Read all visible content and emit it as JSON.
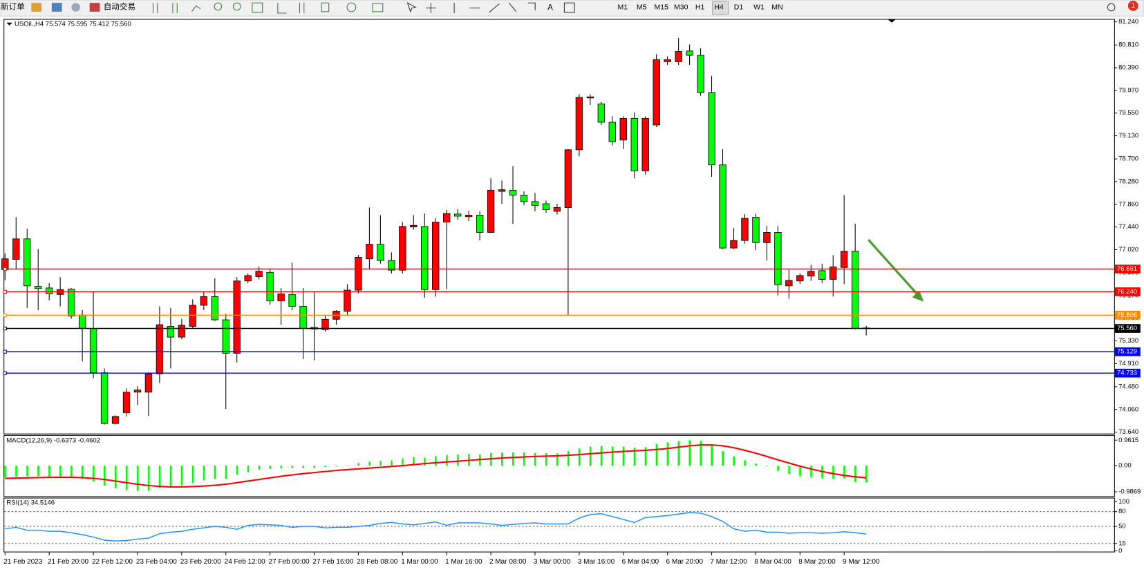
{
  "toolbar": {
    "new_order": "新订单",
    "auto_trading": "自动交易",
    "timeframes": [
      "M1",
      "M5",
      "M15",
      "M30",
      "H1",
      "H4",
      "D1",
      "W1",
      "MN"
    ],
    "notifications": "1"
  },
  "chart_data": [
    {
      "type": "candlestick",
      "title": "USOil.,H4 75.574 75.595 75.412 75.560",
      "categories": [
        "21 Feb 2023",
        null,
        null,
        null,
        "21 Feb 20:00",
        null,
        null,
        null,
        "22 Feb 12:00",
        null,
        null,
        null,
        "23 Feb 04:00",
        null,
        null,
        null,
        "23 Feb 20:00",
        null,
        null,
        null,
        "24 Feb 12:00",
        null,
        null,
        null,
        "27 Feb 00:00",
        null,
        null,
        null,
        "27 Feb 16:00",
        null,
        null,
        null,
        "28 Feb 08:00",
        null,
        null,
        null,
        "1 Mar 00:00",
        null,
        null,
        null,
        "1 Mar 16:00",
        null,
        null,
        null,
        "2 Mar 08:00",
        null,
        null,
        null,
        "3 Mar 00:00",
        null,
        null,
        null,
        "3 Mar 16:00",
        null,
        null,
        null,
        "6 Mar 04:00",
        null,
        null,
        null,
        "6 Mar 20:00",
        null,
        null,
        null,
        "7 Mar 12:00",
        null,
        null,
        null,
        "8 Mar 04:00",
        null,
        null,
        null,
        "8 Mar 20:00",
        null,
        null,
        null,
        "9 Mar 12:00",
        null,
        null
      ],
      "open": [
        76.65,
        76.84,
        77.22,
        76.34,
        76.31,
        76.19,
        76.29,
        75.81,
        75.56,
        74.74,
        73.8,
        74.0,
        74.38,
        74.38,
        74.72,
        75.6,
        75.4,
        75.6,
        75.99,
        76.15,
        75.72,
        75.1,
        76.44,
        76.52,
        76.6,
        76.07,
        76.19,
        75.97,
        75.58,
        75.54,
        75.73,
        75.88,
        76.27,
        76.85,
        77.12,
        76.82,
        76.64,
        77.44,
        77.45,
        76.28,
        77.53,
        77.68,
        77.63,
        77.66,
        77.34,
        78.1,
        78.12,
        78.03,
        77.91,
        77.87,
        77.73,
        77.8,
        78.87,
        79.83,
        79.72,
        79.38,
        79.05,
        79.45,
        78.48,
        79.33,
        80.5,
        80.5,
        80.7,
        80.62,
        79.93,
        78.59,
        77.05,
        77.19,
        77.62,
        77.15,
        77.34,
        76.35,
        76.44,
        76.53,
        76.63,
        76.47,
        76.69,
        76.99,
        75.57
      ],
      "high": [
        76.95,
        77.62,
        77.41,
        77.03,
        76.4,
        76.51,
        76.31,
        75.9,
        76.24,
        74.82,
        73.95,
        74.45,
        74.49,
        74.75,
        75.97,
        75.94,
        75.74,
        76.1,
        76.24,
        76.49,
        75.83,
        76.51,
        76.58,
        76.71,
        76.65,
        76.31,
        76.78,
        76.31,
        76.24,
        75.81,
        75.9,
        76.38,
        76.92,
        77.8,
        77.66,
        76.97,
        77.53,
        77.66,
        77.69,
        77.6,
        77.76,
        77.77,
        77.74,
        77.73,
        78.34,
        78.3,
        78.57,
        78.1,
        78.07,
        77.93,
        77.87,
        78.88,
        79.9,
        79.9,
        79.76,
        79.49,
        79.49,
        79.56,
        79.49,
        80.64,
        80.6,
        80.94,
        80.82,
        80.75,
        80.24,
        78.88,
        77.42,
        77.68,
        77.69,
        77.46,
        77.46,
        76.65,
        76.58,
        76.74,
        76.76,
        76.92,
        78.03,
        77.5,
        75.61
      ],
      "low": [
        76.45,
        76.65,
        75.94,
        75.9,
        76.08,
        75.97,
        75.74,
        74.95,
        74.64,
        73.78,
        73.78,
        73.93,
        74.14,
        73.94,
        74.55,
        74.82,
        75.36,
        75.56,
        75.9,
        75.7,
        74.07,
        74.93,
        76.4,
        76.47,
        76.0,
        75.63,
        75.9,
        74.99,
        74.97,
        75.5,
        75.63,
        75.81,
        76.21,
        76.65,
        76.76,
        76.58,
        76.58,
        77.39,
        76.13,
        76.15,
        76.29,
        77.57,
        77.55,
        77.19,
        77.33,
        77.87,
        77.5,
        77.84,
        77.73,
        77.7,
        77.67,
        75.81,
        78.75,
        79.7,
        79.33,
        78.95,
        78.88,
        78.34,
        78.41,
        79.29,
        80.44,
        80.44,
        80.44,
        79.87,
        78.37,
        77.03,
        77.03,
        77.13,
        77.01,
        76.82,
        76.17,
        76.11,
        76.38,
        76.44,
        76.4,
        76.15,
        76.38,
        75.54,
        75.43
      ],
      "close": [
        76.85,
        77.22,
        76.35,
        76.3,
        76.2,
        76.28,
        75.79,
        75.56,
        74.74,
        73.8,
        73.93,
        74.38,
        74.42,
        74.72,
        75.63,
        75.4,
        75.62,
        75.99,
        76.15,
        75.72,
        75.1,
        76.44,
        76.54,
        76.62,
        76.07,
        76.2,
        75.97,
        75.56,
        75.55,
        75.73,
        75.88,
        76.27,
        76.88,
        77.12,
        76.82,
        76.64,
        77.45,
        77.47,
        76.28,
        77.53,
        77.69,
        77.64,
        77.66,
        77.34,
        78.12,
        78.13,
        78.03,
        77.91,
        77.84,
        77.76,
        77.8,
        78.87,
        79.84,
        79.85,
        79.38,
        79.02,
        79.45,
        78.48,
        79.45,
        80.54,
        80.54,
        80.69,
        80.62,
        79.93,
        78.59,
        77.05,
        77.19,
        77.6,
        77.15,
        77.34,
        76.37,
        76.45,
        76.54,
        76.62,
        76.47,
        76.7,
        76.99,
        75.56,
        75.56
      ],
      "up_color": "#ff0000",
      "down_color": "#00ff00",
      "ylim": [
        73.6,
        81.28
      ],
      "yticks": [
        {
          "value": 81.24,
          "label": "81.240"
        },
        {
          "value": 80.81,
          "label": "80.810"
        },
        {
          "value": 80.39,
          "label": "80.390"
        },
        {
          "value": 79.97,
          "label": "79.970"
        },
        {
          "value": 79.55,
          "label": "79.550"
        },
        {
          "value": 79.13,
          "label": "79.130"
        },
        {
          "value": 78.7,
          "label": "78.700"
        },
        {
          "value": 78.28,
          "label": "78.280"
        },
        {
          "value": 77.86,
          "label": "77.860"
        },
        {
          "value": 77.44,
          "label": "77.440"
        },
        {
          "value": 77.02,
          "label": "77.020"
        },
        {
          "value": 76.59,
          "label": "76.590"
        },
        {
          "value": 76.17,
          "label": "76.170"
        },
        {
          "value": 75.75,
          "label": "75.750"
        },
        {
          "value": 75.33,
          "label": "75.330"
        },
        {
          "value": 74.91,
          "label": "74.910"
        },
        {
          "value": 74.48,
          "label": "74.480"
        },
        {
          "value": 74.06,
          "label": "74.060"
        },
        {
          "value": 73.64,
          "label": "73.640"
        }
      ],
      "levels": [
        {
          "value": 76.661,
          "color": "#ff0000"
        },
        {
          "value": 76.24,
          "label": "76.240",
          "color": "#ff0000"
        },
        {
          "value": 75.806,
          "color": "#ff8c00"
        },
        {
          "value": 75.56,
          "label": "75.560",
          "color": "#000000"
        },
        {
          "value": 75.129,
          "color": "#0000ff"
        },
        {
          "value": 74.733,
          "color": "#0000ff"
        }
      ]
    },
    {
      "type": "macd",
      "title": "MACD(12,26,9) -0.6373 -0.4602",
      "histogram": {
        "color": "#00ff00",
        "values": [
          -0.45,
          -0.42,
          -0.4,
          -0.4,
          -0.42,
          -0.42,
          -0.45,
          -0.5,
          -0.6,
          -0.75,
          -0.85,
          -0.92,
          -0.95,
          -0.95,
          -0.85,
          -0.8,
          -0.75,
          -0.65,
          -0.55,
          -0.5,
          -0.5,
          -0.35,
          -0.25,
          -0.15,
          -0.12,
          -0.1,
          -0.08,
          -0.08,
          -0.08,
          -0.06,
          -0.03,
          0.02,
          0.1,
          0.15,
          0.18,
          0.2,
          0.28,
          0.32,
          0.3,
          0.36,
          0.4,
          0.42,
          0.44,
          0.42,
          0.48,
          0.5,
          0.5,
          0.5,
          0.48,
          0.47,
          0.46,
          0.55,
          0.65,
          0.72,
          0.74,
          0.72,
          0.72,
          0.68,
          0.7,
          0.82,
          0.88,
          0.93,
          0.96,
          0.94,
          0.8,
          0.55,
          0.35,
          0.2,
          0.08,
          -0.02,
          -0.2,
          -0.32,
          -0.4,
          -0.45,
          -0.48,
          -0.5,
          -0.48,
          -0.62,
          -0.64
        ]
      },
      "signal": {
        "color": "#ff0000",
        "values": [
          -0.48,
          -0.47,
          -0.46,
          -0.45,
          -0.44,
          -0.44,
          -0.44,
          -0.45,
          -0.48,
          -0.52,
          -0.58,
          -0.64,
          -0.7,
          -0.75,
          -0.78,
          -0.8,
          -0.8,
          -0.79,
          -0.77,
          -0.74,
          -0.7,
          -0.64,
          -0.58,
          -0.52,
          -0.46,
          -0.4,
          -0.35,
          -0.3,
          -0.26,
          -0.22,
          -0.18,
          -0.15,
          -0.12,
          -0.09,
          -0.06,
          -0.03,
          0.0,
          0.04,
          0.08,
          0.11,
          0.14,
          0.17,
          0.2,
          0.23,
          0.26,
          0.29,
          0.31,
          0.33,
          0.35,
          0.36,
          0.37,
          0.39,
          0.42,
          0.45,
          0.48,
          0.51,
          0.54,
          0.56,
          0.58,
          0.61,
          0.65,
          0.7,
          0.75,
          0.78,
          0.78,
          0.75,
          0.68,
          0.58,
          0.47,
          0.35,
          0.22,
          0.1,
          -0.02,
          -0.12,
          -0.22,
          -0.3,
          -0.37,
          -0.42,
          -0.46
        ]
      },
      "ylim": [
        -1.18,
        1.13
      ],
      "yticks": [
        0.9615,
        {
          "value": 0,
          "label": "0.00"
        },
        -0.9869
      ]
    },
    {
      "type": "line",
      "title": "RSI(14) 34.5146",
      "color": "#1e90ff",
      "values": [
        45,
        48,
        42,
        42,
        40,
        40,
        37,
        33,
        28,
        22,
        20,
        21,
        24,
        26,
        35,
        38,
        40,
        44,
        47,
        50,
        48,
        44,
        52,
        54,
        53,
        52,
        48,
        50,
        50,
        47,
        48,
        48,
        50,
        52,
        56,
        58,
        55,
        53,
        56,
        59,
        52,
        57,
        57,
        57,
        55,
        52,
        54,
        56,
        57,
        55,
        55,
        55,
        67,
        74,
        76,
        70,
        64,
        58,
        68,
        70,
        72,
        75,
        78,
        77,
        70,
        60,
        45,
        40,
        42,
        38,
        38,
        36,
        37,
        37,
        36,
        37,
        39,
        37,
        34.51
      ],
      "ylim": [
        -3,
        107
      ],
      "yticks": [
        100,
        80,
        50,
        15,
        0
      ],
      "levels": [
        80,
        50,
        15
      ]
    }
  ]
}
